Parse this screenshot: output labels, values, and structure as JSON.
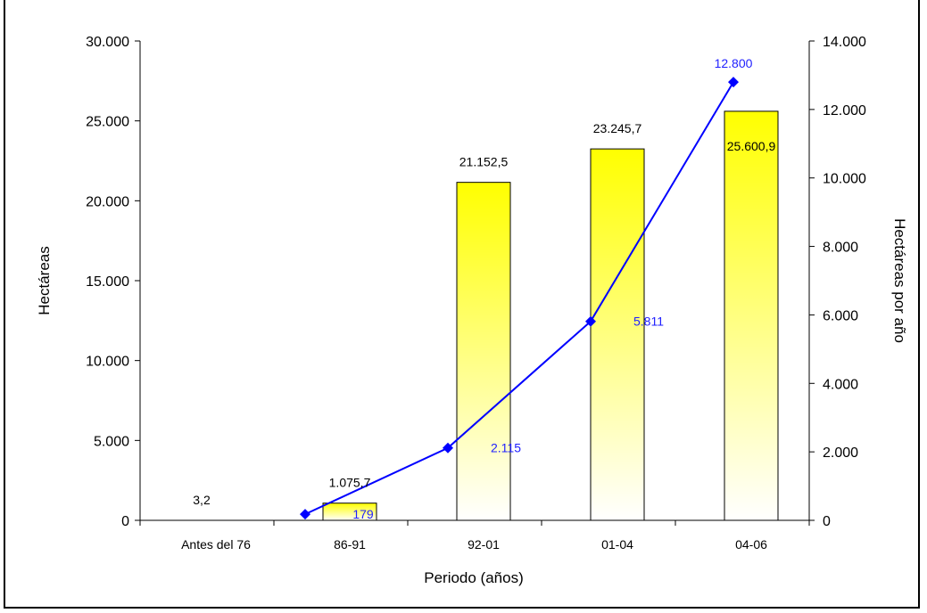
{
  "chart_data": {
    "type": "bar",
    "categories": [
      "Antes del 76",
      "86-91",
      "92-01",
      "01-04",
      "04-06"
    ],
    "series": [
      {
        "type": "bar",
        "axis": "left",
        "values": [
          3.2,
          1075.7,
          21152.5,
          23245.7,
          25600.9
        ],
        "labels": [
          "3,2",
          "1.075,7",
          "21.152,5",
          "23.245,7",
          "25.600,9"
        ],
        "color_top": "#ffff00",
        "color_bottom": "#ffffff"
      },
      {
        "type": "line",
        "axis": "right",
        "values": [
          null,
          179,
          2115,
          5811,
          12800
        ],
        "labels": [
          "",
          "179",
          "2.115",
          "5.811",
          "12.800"
        ],
        "color": "#0000ff"
      }
    ],
    "title": "",
    "xlabel": "Periodo (años)",
    "ylabel": "Hectáreas",
    "y2label": "Hectáreas por año",
    "ylim": [
      0,
      30000
    ],
    "y2lim": [
      0,
      14000
    ],
    "yticks": [
      "0",
      "5.000",
      "10.000",
      "15.000",
      "20.000",
      "25.000",
      "30.000"
    ],
    "yticks_values": [
      0,
      5000,
      10000,
      15000,
      20000,
      25000,
      30000
    ],
    "y2ticks": [
      "0",
      "2.000",
      "4.000",
      "6.000",
      "8.000",
      "10.000",
      "12.000",
      "14.000"
    ],
    "y2ticks_values": [
      0,
      2000,
      4000,
      6000,
      8000,
      10000,
      12000,
      14000
    ],
    "grid": false,
    "legend": "none"
  }
}
